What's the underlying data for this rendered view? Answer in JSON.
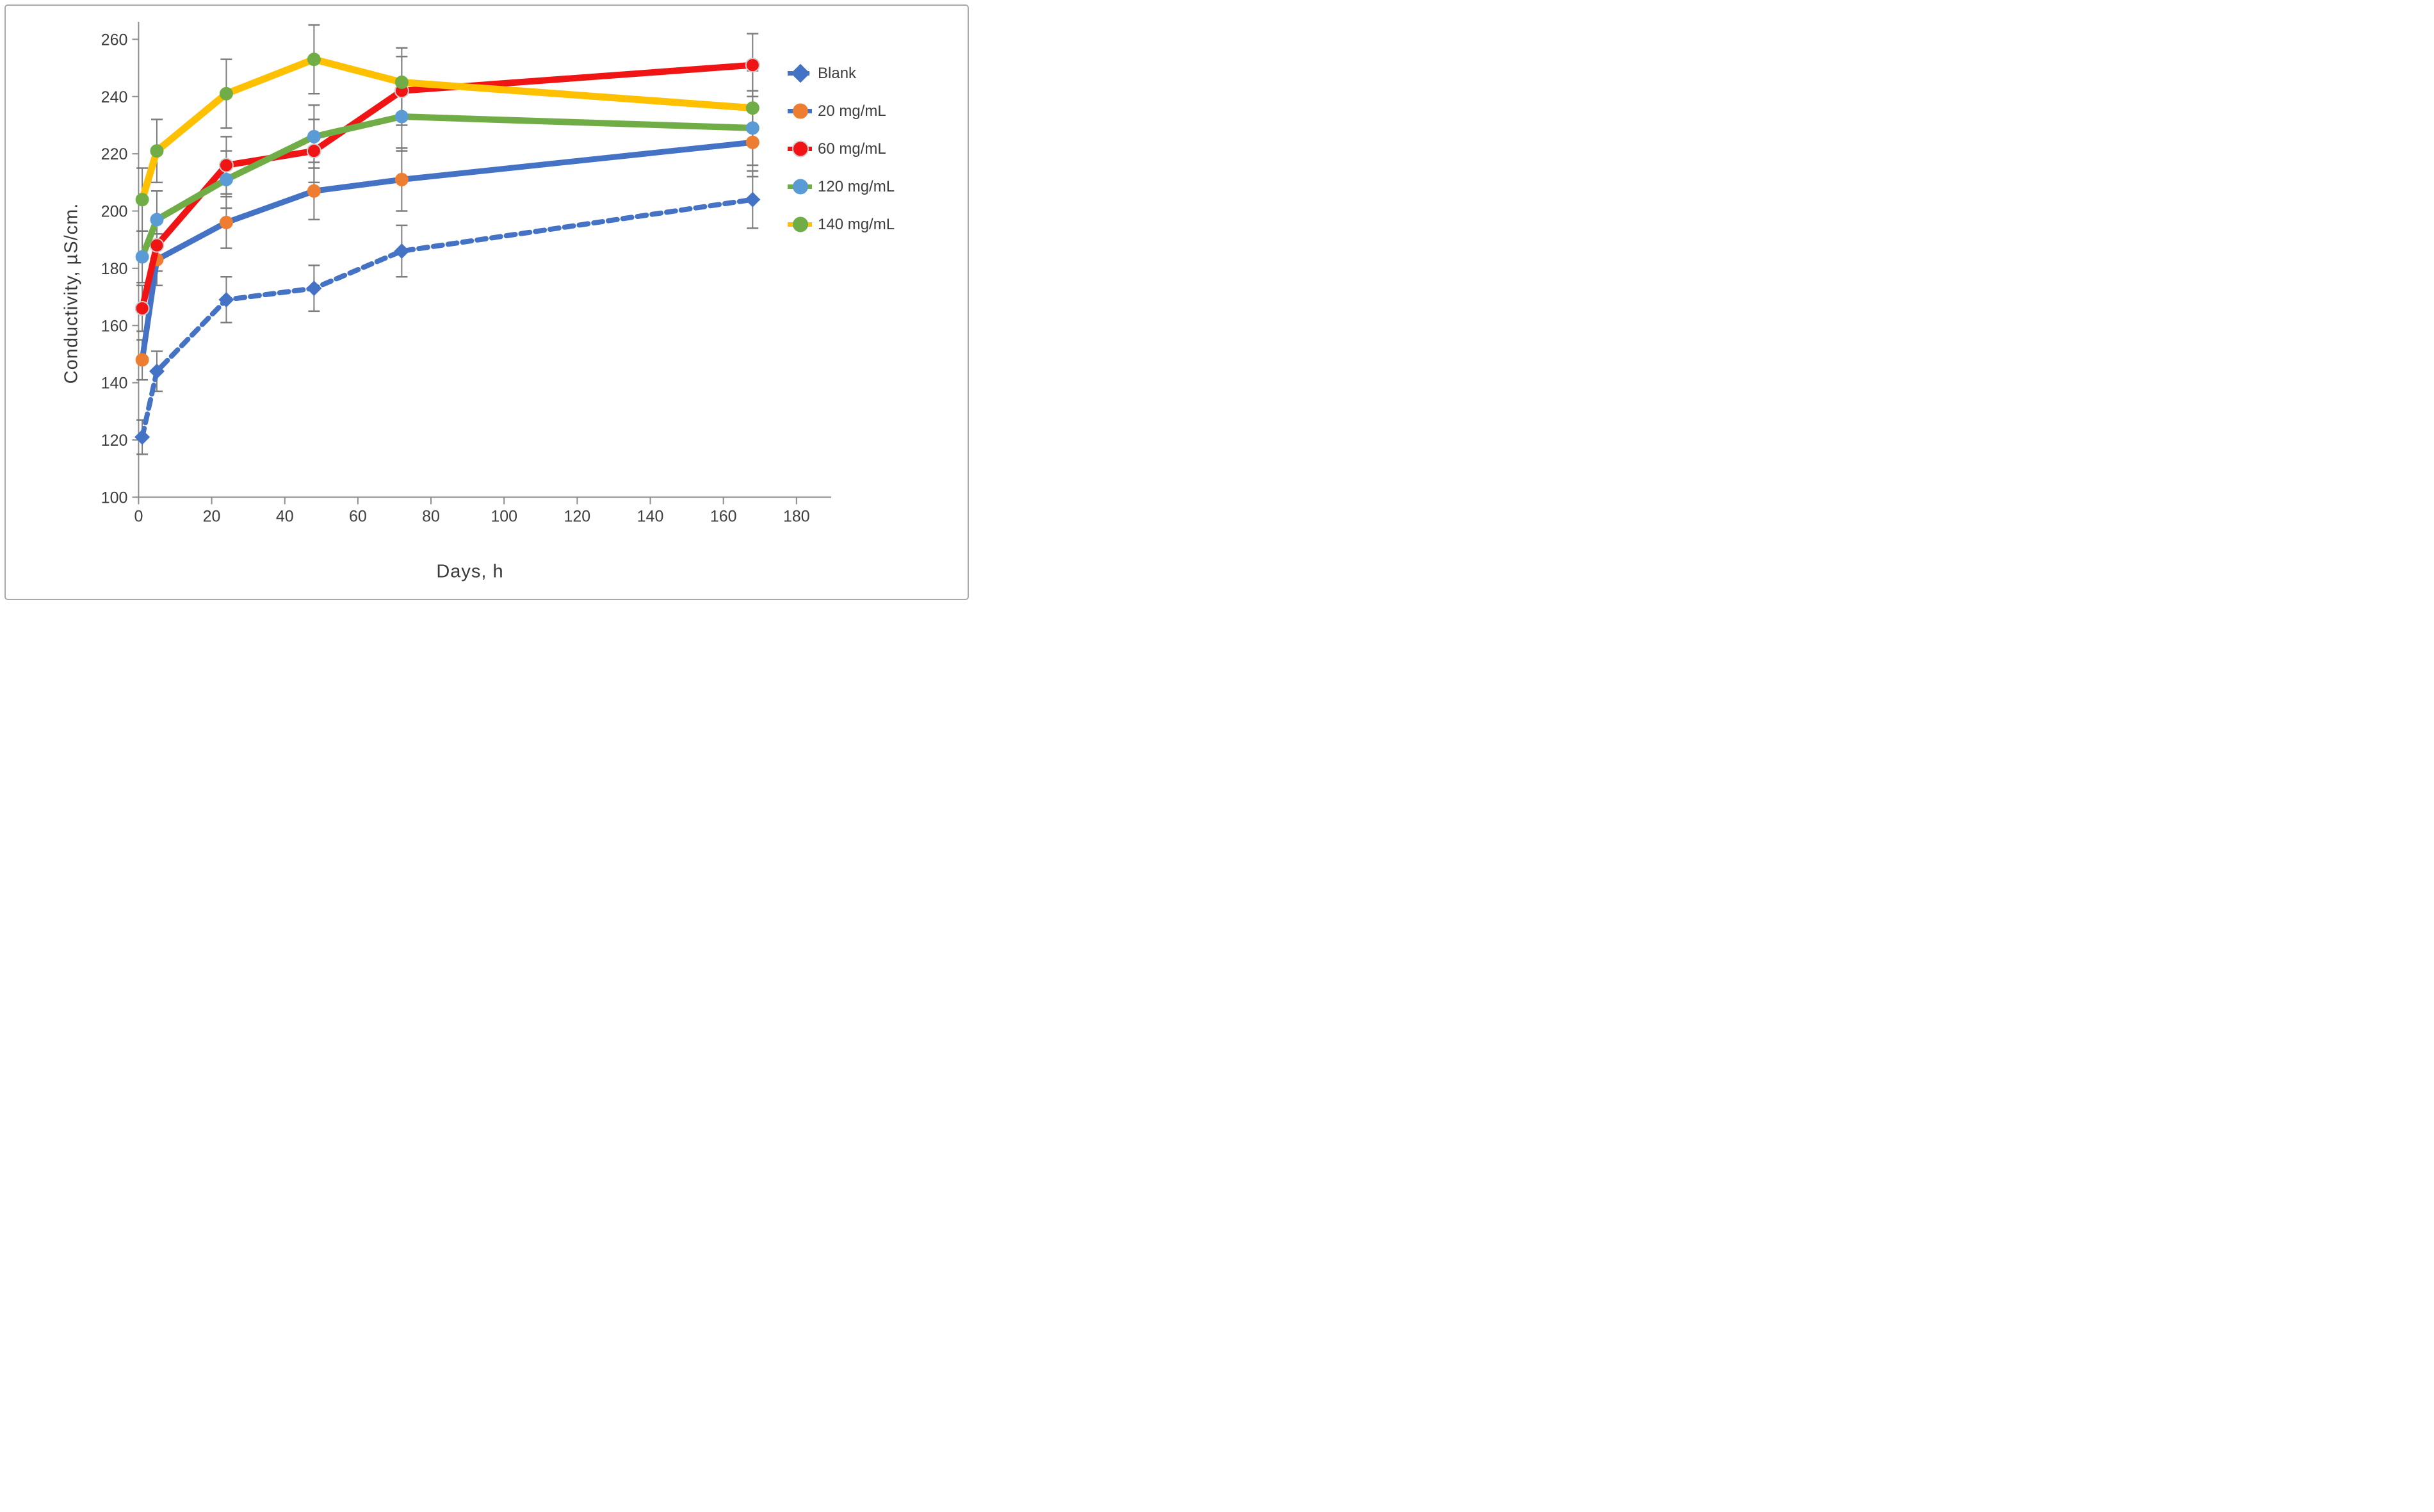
{
  "figure": {
    "xlabel": "Days, h",
    "ylabel": "Conductivity, µS/cm."
  },
  "chart_data": {
    "type": "line",
    "title": "",
    "xlabel": "Days, h",
    "ylabel": "Conductivity, µS/cm.",
    "x": [
      1,
      5,
      24,
      48,
      72,
      168
    ],
    "x_ticks": [
      0,
      20,
      40,
      60,
      80,
      100,
      120,
      140,
      160,
      180
    ],
    "y_ticks": [
      100,
      120,
      140,
      160,
      180,
      200,
      220,
      240,
      260
    ],
    "xlim": [
      0,
      189
    ],
    "ylim": [
      100,
      260
    ],
    "grid": false,
    "legend_position": "right",
    "axis_color": "#8c8c8c",
    "tick_label_color": "#3d3d3d",
    "error_bar_color": "#6f6f6f",
    "series": [
      {
        "name": "Blank",
        "values": [
          121,
          144,
          169,
          173,
          186,
          204
        ],
        "errors": [
          6,
          7,
          8,
          8,
          9,
          10
        ],
        "line_color": "#4472C4",
        "line_style": "dashed",
        "marker": "diamond",
        "marker_color": "#4472C4"
      },
      {
        "name": "20 mg/mL",
        "values": [
          148,
          183,
          196,
          207,
          211,
          224
        ],
        "errors": [
          7,
          9,
          9,
          10,
          11,
          12
        ],
        "line_color": "#4472C4",
        "line_style": "solid",
        "marker": "circle",
        "marker_color": "#ED7D31"
      },
      {
        "name": "60 mg/mL",
        "values": [
          166,
          188,
          216,
          221,
          242,
          251
        ],
        "errors": [
          8,
          9,
          10,
          11,
          12,
          11
        ],
        "line_color": "#F01414",
        "line_style": "solid",
        "marker": "circle",
        "marker_color": "#F01414",
        "marker_ring": "#cccccc"
      },
      {
        "name": "120 mg/mL",
        "values": [
          184,
          197,
          211,
          226,
          233,
          229
        ],
        "errors": [
          9,
          10,
          10,
          11,
          12,
          13
        ],
        "line_color": "#70AD47",
        "line_style": "solid",
        "marker": "circle",
        "marker_color": "#5B9BD5"
      },
      {
        "name": "140 mg/mL",
        "values": [
          204,
          221,
          241,
          253,
          245,
          236
        ],
        "errors": [
          11,
          11,
          12,
          12,
          12,
          13
        ],
        "line_color": "#FFC000",
        "line_style": "solid",
        "marker": "circle",
        "marker_color": "#70AD47"
      }
    ]
  }
}
